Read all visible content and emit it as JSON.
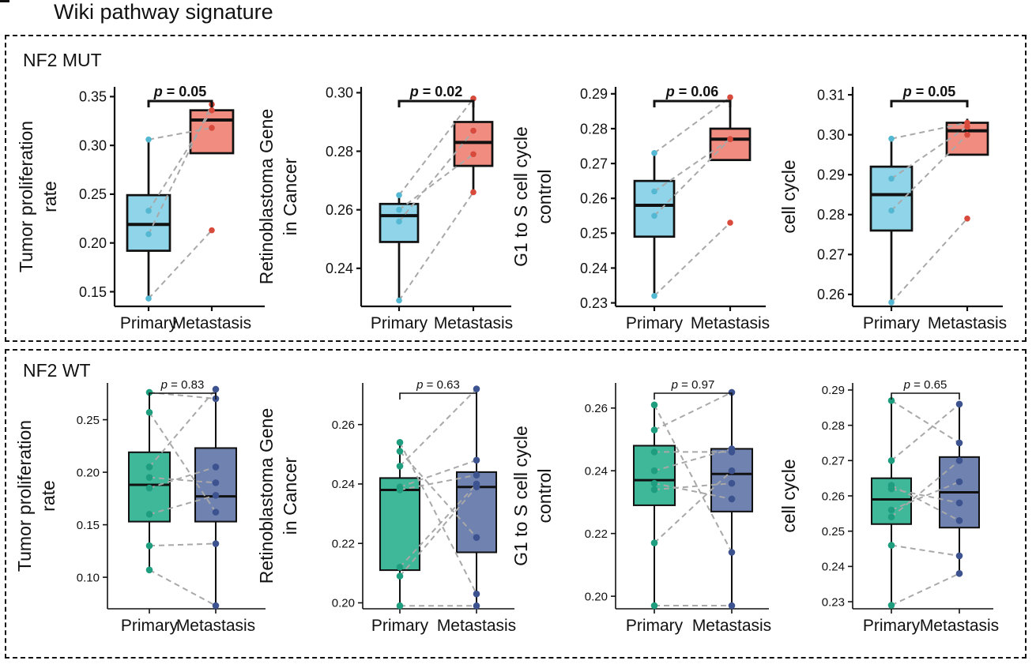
{
  "page": {
    "title": "Wiki pathway signature"
  },
  "colors": {
    "mut_primary_fill": "#8fd4e8",
    "mut_primary_point": "#55b8d2",
    "mut_meta_fill": "#f08c80",
    "mut_meta_point": "#d84a3c",
    "wt_primary_fill": "#3fb89a",
    "wt_primary_point": "#1e9e7e",
    "wt_meta_fill": "#6f82b0",
    "wt_meta_point": "#3d5390",
    "pair_line": "#a8a8a8"
  },
  "groups": [
    {
      "key": "mut",
      "label": "NF2 MUT"
    },
    {
      "key": "wt",
      "label": "NF2 WT"
    }
  ],
  "chart_data": [
    {
      "type": "boxplot",
      "group": "NF2 MUT",
      "ylabel": [
        "Tumor proliferation",
        "rate"
      ],
      "categories": [
        "Primary",
        "Metastasis"
      ],
      "yticks": [
        0.15,
        0.2,
        0.25,
        0.3,
        0.35
      ],
      "ylim": [
        0.135,
        0.36
      ],
      "tick_decimals": 2,
      "pvalue": "p = 0.05",
      "boxes": [
        {
          "whisker_low": 0.143,
          "q1": 0.192,
          "median": 0.219,
          "q3": 0.249,
          "whisker_high": 0.306
        },
        {
          "whisker_low": 0.292,
          "q1": 0.292,
          "median": 0.326,
          "q3": 0.336,
          "whisker_high": 0.342
        }
      ],
      "points": [
        [
          0.306,
          0.209,
          0.233,
          0.143
        ],
        [
          0.318,
          0.342,
          0.336,
          0.213
        ]
      ],
      "pairs": [
        [
          0.306,
          0.318
        ],
        [
          0.209,
          0.342
        ],
        [
          0.233,
          0.336
        ],
        [
          0.143,
          0.213
        ]
      ]
    },
    {
      "type": "boxplot",
      "group": "NF2 MUT",
      "ylabel": [
        "Retinoblastoma Gene",
        "in Cancer"
      ],
      "categories": [
        "Primary",
        "Metastasis"
      ],
      "yticks": [
        0.24,
        0.26,
        0.28,
        0.3
      ],
      "ylim": [
        0.227,
        0.302
      ],
      "tick_decimals": 2,
      "pvalue": "p = 0.02",
      "boxes": [
        {
          "whisker_low": 0.229,
          "q1": 0.249,
          "median": 0.258,
          "q3": 0.262,
          "whisker_high": 0.265
        },
        {
          "whisker_low": 0.266,
          "q1": 0.275,
          "median": 0.283,
          "q3": 0.29,
          "whisker_high": 0.298
        }
      ],
      "points": [
        [
          0.265,
          0.256,
          0.26,
          0.229
        ],
        [
          0.298,
          0.287,
          0.279,
          0.266
        ]
      ],
      "pairs": [
        [
          0.265,
          0.298
        ],
        [
          0.256,
          0.287
        ],
        [
          0.26,
          0.279
        ],
        [
          0.229,
          0.266
        ]
      ]
    },
    {
      "type": "boxplot",
      "group": "NF2 MUT",
      "ylabel": [
        "G1 to S cell cycle",
        "control"
      ],
      "categories": [
        "Primary",
        "Metastasis"
      ],
      "yticks": [
        0.23,
        0.24,
        0.25,
        0.26,
        0.27,
        0.28,
        0.29
      ],
      "ylim": [
        0.229,
        0.292
      ],
      "tick_decimals": 2,
      "pvalue": "p = 0.06",
      "boxes": [
        {
          "whisker_low": 0.232,
          "q1": 0.249,
          "median": 0.258,
          "q3": 0.265,
          "whisker_high": 0.273
        },
        {
          "whisker_low": 0.271,
          "q1": 0.271,
          "median": 0.277,
          "q3": 0.28,
          "whisker_high": 0.289
        }
      ],
      "points": [
        [
          0.273,
          0.262,
          0.255,
          0.232
        ],
        [
          0.289,
          0.277,
          0.277,
          0.253
        ]
      ],
      "pairs": [
        [
          0.273,
          0.289
        ],
        [
          0.262,
          0.277
        ],
        [
          0.255,
          0.277
        ],
        [
          0.232,
          0.253
        ]
      ]
    },
    {
      "type": "boxplot",
      "group": "NF2 MUT",
      "ylabel": [
        "cell cycle"
      ],
      "categories": [
        "Primary",
        "Metastasis"
      ],
      "yticks": [
        0.26,
        0.27,
        0.28,
        0.29,
        0.3,
        0.31
      ],
      "ylim": [
        0.257,
        0.312
      ],
      "tick_decimals": 2,
      "pvalue": "p = 0.05",
      "boxes": [
        {
          "whisker_low": 0.258,
          "q1": 0.276,
          "median": 0.285,
          "q3": 0.292,
          "whisker_high": 0.299
        },
        {
          "whisker_low": 0.295,
          "q1": 0.295,
          "median": 0.301,
          "q3": 0.303,
          "whisker_high": 0.304
        }
      ],
      "points": [
        [
          0.299,
          0.289,
          0.281,
          0.258
        ],
        [
          0.303,
          0.302,
          0.3,
          0.279
        ]
      ],
      "pairs": [
        [
          0.299,
          0.303
        ],
        [
          0.289,
          0.302
        ],
        [
          0.281,
          0.3
        ],
        [
          0.258,
          0.279
        ]
      ]
    },
    {
      "type": "boxplot",
      "group": "NF2 WT",
      "ylabel": [
        "Tumor proliferation",
        "rate"
      ],
      "categories": [
        "Primary",
        "Metastasis"
      ],
      "yticks": [
        0.1,
        0.15,
        0.2,
        0.25
      ],
      "ylim": [
        0.07,
        0.285
      ],
      "tick_decimals": 2,
      "pvalue": "p = 0.83",
      "boxes": [
        {
          "whisker_low": 0.107,
          "q1": 0.153,
          "median": 0.188,
          "q3": 0.219,
          "whisker_high": 0.276
        },
        {
          "whisker_low": 0.073,
          "q1": 0.153,
          "median": 0.177,
          "q3": 0.223,
          "whisker_high": 0.279
        }
      ],
      "points": [
        [
          0.276,
          0.257,
          0.205,
          0.195,
          0.185,
          0.16,
          0.13,
          0.107
        ],
        [
          0.279,
          0.27,
          0.205,
          0.19,
          0.178,
          0.162,
          0.132,
          0.073
        ]
      ],
      "pairs": [
        [
          0.276,
          0.27
        ],
        [
          0.257,
          0.162
        ],
        [
          0.205,
          0.279
        ],
        [
          0.195,
          0.19
        ],
        [
          0.185,
          0.205
        ],
        [
          0.16,
          0.178
        ],
        [
          0.13,
          0.132
        ],
        [
          0.107,
          0.073
        ]
      ]
    },
    {
      "type": "boxplot",
      "group": "NF2 WT",
      "ylabel": [
        "Retinoblastoma Gene",
        "in Cancer"
      ],
      "categories": [
        "Primary",
        "Metastasis"
      ],
      "yticks": [
        0.2,
        0.22,
        0.24,
        0.26
      ],
      "ylim": [
        0.198,
        0.274
      ],
      "tick_decimals": 2,
      "pvalue": "p = 0.63",
      "boxes": [
        {
          "whisker_low": 0.199,
          "q1": 0.211,
          "median": 0.238,
          "q3": 0.242,
          "whisker_high": 0.254
        },
        {
          "whisker_low": 0.199,
          "q1": 0.217,
          "median": 0.239,
          "q3": 0.244,
          "whisker_high": 0.272
        }
      ],
      "points": [
        [
          0.254,
          0.251,
          0.246,
          0.239,
          0.238,
          0.212,
          0.209,
          0.199
        ],
        [
          0.272,
          0.248,
          0.243,
          0.24,
          0.239,
          0.222,
          0.203,
          0.199
        ]
      ],
      "pairs": [
        [
          0.254,
          0.203
        ],
        [
          0.251,
          0.222
        ],
        [
          0.246,
          0.272
        ],
        [
          0.239,
          0.248
        ],
        [
          0.238,
          0.243
        ],
        [
          0.212,
          0.24
        ],
        [
          0.209,
          0.239
        ],
        [
          0.199,
          0.199
        ]
      ]
    },
    {
      "type": "boxplot",
      "group": "NF2 WT",
      "ylabel": [
        "G1 to S cell cycle",
        "control"
      ],
      "categories": [
        "Primary",
        "Metastasis"
      ],
      "yticks": [
        0.2,
        0.22,
        0.24,
        0.26
      ],
      "ylim": [
        0.196,
        0.268
      ],
      "tick_decimals": 2,
      "pvalue": "p = 0.97",
      "boxes": [
        {
          "whisker_low": 0.197,
          "q1": 0.229,
          "median": 0.237,
          "q3": 0.248,
          "whisker_high": 0.261
        },
        {
          "whisker_low": 0.197,
          "q1": 0.227,
          "median": 0.239,
          "q3": 0.247,
          "whisker_high": 0.265
        }
      ],
      "points": [
        [
          0.261,
          0.253,
          0.246,
          0.24,
          0.236,
          0.234,
          0.217,
          0.197
        ],
        [
          0.265,
          0.247,
          0.246,
          0.24,
          0.236,
          0.231,
          0.214,
          0.197
        ]
      ],
      "pairs": [
        [
          0.261,
          0.214
        ],
        [
          0.253,
          0.265
        ],
        [
          0.246,
          0.246
        ],
        [
          0.24,
          0.247
        ],
        [
          0.236,
          0.231
        ],
        [
          0.234,
          0.236
        ],
        [
          0.217,
          0.24
        ],
        [
          0.197,
          0.197
        ]
      ]
    },
    {
      "type": "boxplot",
      "group": "NF2 WT",
      "ylabel": [
        "cell cycle"
      ],
      "categories": [
        "Primary",
        "Metastasis"
      ],
      "yticks": [
        0.23,
        0.24,
        0.25,
        0.26,
        0.27,
        0.28,
        0.29
      ],
      "ylim": [
        0.228,
        0.292
      ],
      "tick_decimals": 2,
      "pvalue": "p = 0.65",
      "boxes": [
        {
          "whisker_low": 0.229,
          "q1": 0.252,
          "median": 0.259,
          "q3": 0.265,
          "whisker_high": 0.287
        },
        {
          "whisker_low": 0.238,
          "q1": 0.251,
          "median": 0.261,
          "q3": 0.271,
          "whisker_high": 0.286
        }
      ],
      "points": [
        [
          0.287,
          0.27,
          0.263,
          0.262,
          0.256,
          0.254,
          0.246,
          0.229
        ],
        [
          0.286,
          0.275,
          0.27,
          0.264,
          0.258,
          0.253,
          0.243,
          0.238
        ]
      ],
      "pairs": [
        [
          0.287,
          0.275
        ],
        [
          0.27,
          0.286
        ],
        [
          0.263,
          0.253
        ],
        [
          0.262,
          0.258
        ],
        [
          0.256,
          0.264
        ],
        [
          0.254,
          0.27
        ],
        [
          0.246,
          0.243
        ],
        [
          0.229,
          0.238
        ]
      ]
    }
  ]
}
